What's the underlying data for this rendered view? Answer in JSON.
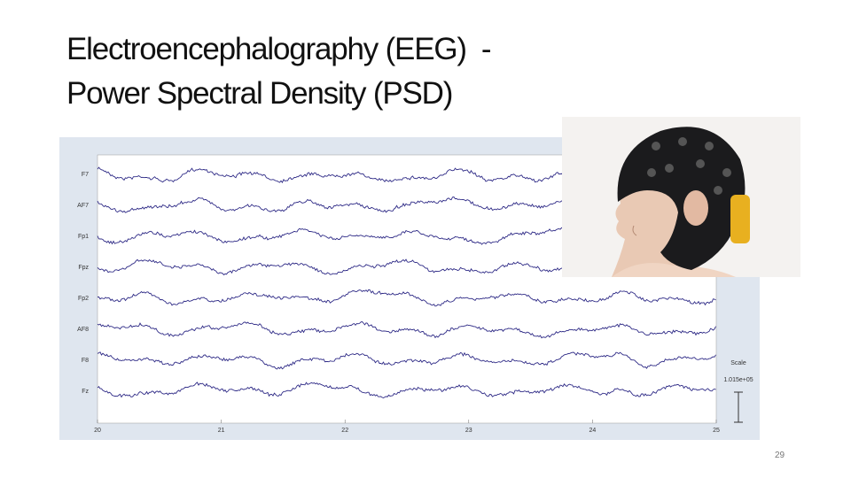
{
  "title": {
    "line1": "Electroencephalography (EEG)  -",
    "line2": "Power Spectral Density (PSD)"
  },
  "eeg_plot": {
    "channels": [
      "F7",
      "AF7",
      "Fp1",
      "Fpz",
      "Fp2",
      "AF8",
      "F8",
      "Fz"
    ],
    "x_ticks": [
      "20",
      "21",
      "22",
      "23",
      "24",
      "25"
    ],
    "scale_label": "Scale",
    "scale_value": "1.015e+05"
  },
  "page_number": "29"
}
